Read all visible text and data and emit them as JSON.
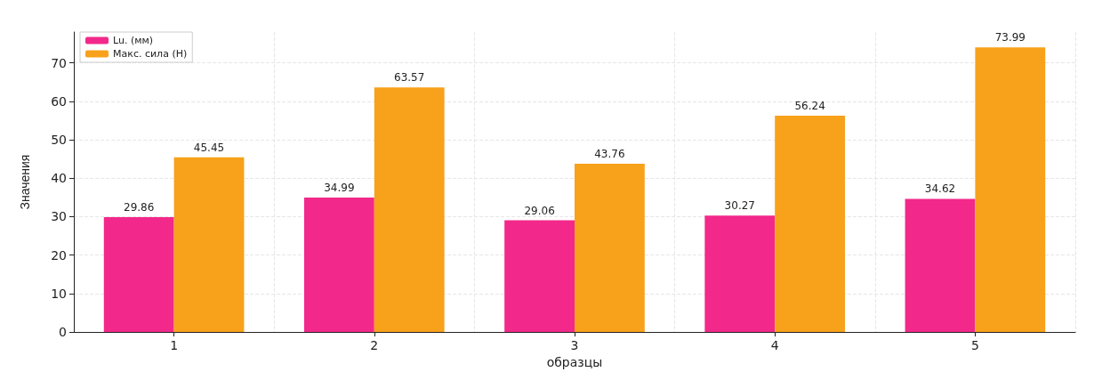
{
  "chart_data": {
    "type": "bar",
    "xlabel": "образцы",
    "ylabel": "Значения",
    "categories": [
      "1",
      "2",
      "3",
      "4",
      "5"
    ],
    "series": [
      {
        "name": "Lu. (мм)",
        "color": "#f2288a",
        "values": [
          29.86,
          34.99,
          29.06,
          30.27,
          34.62
        ]
      },
      {
        "name": "Макс. сила (Н)",
        "color": "#f8a11b",
        "values": [
          45.45,
          63.57,
          43.76,
          56.24,
          73.99
        ]
      }
    ],
    "ylim": [
      0,
      78
    ],
    "yticks": [
      0,
      10,
      20,
      30,
      40,
      50,
      60,
      70
    ],
    "grid": true,
    "legend": "top left",
    "data_labels": true
  }
}
